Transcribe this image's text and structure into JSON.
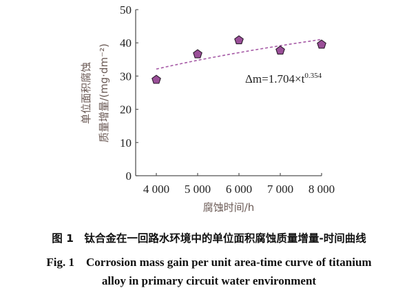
{
  "chart_data": {
    "type": "scatter",
    "xlabel": "腐蚀时间/h",
    "ylabel_line1": "单位面积腐蚀",
    "ylabel_line2": "质量增量/(mg·dm⁻²)",
    "xlim": [
      3500,
      8000
    ],
    "ylim": [
      0,
      50
    ],
    "x_ticks": [
      4000,
      5000,
      6000,
      7000,
      8000
    ],
    "x_tick_labels": [
      "4 000",
      "5 000",
      "6 000",
      "7 000",
      "8 000"
    ],
    "y_ticks": [
      0,
      10,
      20,
      30,
      40,
      50
    ],
    "y_tick_labels": [
      "0",
      "10",
      "20",
      "30",
      "40",
      "50"
    ],
    "grid": false,
    "series": [
      {
        "x": [
          4000,
          5000,
          6000,
          7000,
          8000
        ],
        "y": [
          29.0,
          36.7,
          40.9,
          37.8,
          39.6
        ],
        "marker": "pentagon",
        "color": "#9a4f98"
      }
    ],
    "fit": {
      "a": 1.704,
      "b": 0.354,
      "x_range": [
        4000,
        8000
      ],
      "style": "dashed",
      "color": "#a65aa6"
    },
    "annotation": {
      "prefix": "Δm=1.704×t",
      "exponent": "0.354"
    }
  },
  "caption": {
    "cn": "图 1　钛合金在一回路水环境中的单位面积腐蚀质量增量-时间曲线",
    "en_line1": "Fig. 1　Corrosion mass gain per unit area-time curve of titanium",
    "en_line2": "alloy in primary circuit water environment"
  }
}
